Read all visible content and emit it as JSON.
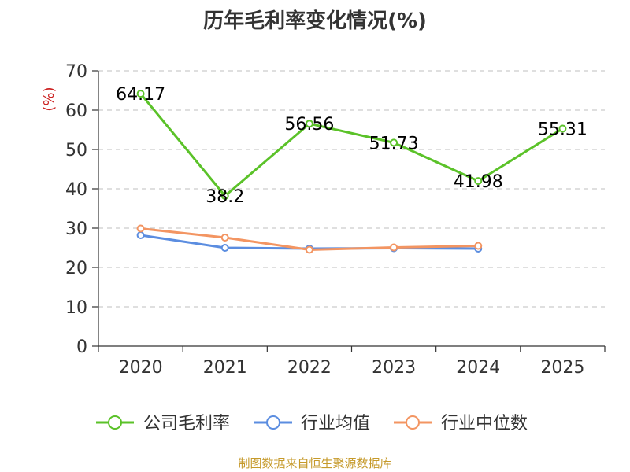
{
  "chart_data": {
    "type": "line",
    "title": "历年毛利率变化情况(%)",
    "ylabel": "(%)",
    "xlabel": "",
    "categories": [
      "2020",
      "2021",
      "2022",
      "2023",
      "2024",
      "2025"
    ],
    "ylim": [
      0,
      70
    ],
    "yticks": [
      0,
      10,
      20,
      30,
      40,
      50,
      60,
      70
    ],
    "grid": true,
    "legend_position": "bottom",
    "series": [
      {
        "name": "公司毛利率",
        "color": "#5bc229",
        "values": [
          64.17,
          38.2,
          56.56,
          51.73,
          41.98,
          55.31
        ],
        "labels": [
          "64.17",
          "38.2",
          "56.56",
          "51.73",
          "41.98",
          "55.31"
        ]
      },
      {
        "name": "行业均值",
        "color": "#5b8de0",
        "values": [
          28.2,
          25.0,
          24.8,
          24.9,
          24.8,
          null
        ]
      },
      {
        "name": "行业中位数",
        "color": "#f39562",
        "values": [
          29.9,
          27.6,
          24.5,
          25.1,
          25.5,
          null
        ]
      }
    ]
  },
  "footer": {
    "source": "制图数据来自恒生聚源数据库"
  }
}
